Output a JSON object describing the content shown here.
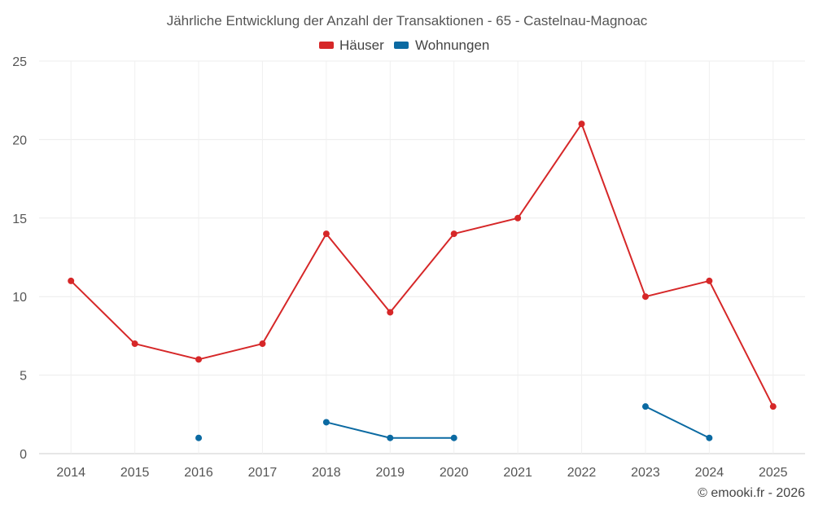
{
  "chart_data": {
    "type": "line",
    "title": "Jährliche Entwicklung der Anzahl der Transaktionen - 65 - Castelnau-Magnoac",
    "xlabel": "",
    "ylabel": "",
    "ylim": [
      0,
      25
    ],
    "yticks": [
      "0",
      "5",
      "10",
      "15",
      "20",
      "25"
    ],
    "categories": [
      "2014",
      "2015",
      "2016",
      "2017",
      "2018",
      "2019",
      "2020",
      "2021",
      "2022",
      "2023",
      "2024",
      "2025"
    ],
    "grid": true,
    "legend_position": "top-center",
    "series": [
      {
        "name": "Häuser",
        "color": "#d62728",
        "values": [
          11,
          7,
          6,
          7,
          14,
          9,
          14,
          15,
          21,
          10,
          11,
          3
        ]
      },
      {
        "name": "Wohnungen",
        "color": "#0b6aa2",
        "values": [
          null,
          null,
          1,
          null,
          2,
          1,
          1,
          null,
          null,
          3,
          1,
          null
        ]
      }
    ]
  },
  "credit": "© emooki.fr - 2026"
}
